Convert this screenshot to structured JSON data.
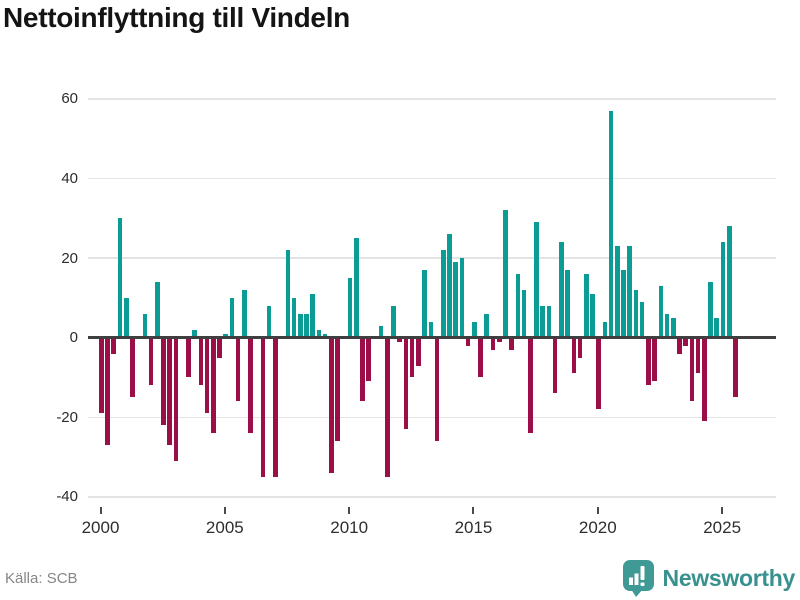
{
  "header": {
    "title": "Nettoinflyttning till Vindeln"
  },
  "footer": {
    "source": "Källa: SCB"
  },
  "brand": {
    "name": "Newsworthy",
    "icon": "newsworthy-pin-barchart-icon",
    "color": "#38918f"
  },
  "colors": {
    "positive_bar": "#0b9c95",
    "negative_bar": "#9c0e47",
    "gridline": "#e4e4e4",
    "zero_line": "#3f3f3f",
    "title_text": "#141414",
    "axis_text": "#2e2e2e",
    "source_text": "#868686"
  },
  "chart_data": {
    "type": "bar",
    "title": "Nettoinflyttning till Vindeln",
    "source": "Källa: SCB",
    "xlabel": "",
    "ylabel": "",
    "grid": "horizontal",
    "legend": "none",
    "y_ticks": [
      60,
      40,
      20,
      0,
      -20,
      -40
    ],
    "y_tick_labels": [
      "60",
      "40",
      "20",
      "0",
      "-20",
      "-40"
    ],
    "ylim": [
      -44,
      64
    ],
    "x_tick_labels": [
      "2000",
      "2005",
      "2010",
      "2015",
      "2020",
      "2025"
    ],
    "x_tick_indices": [
      0,
      20,
      40,
      60,
      80,
      100
    ],
    "quarters": [
      "2000-Q1",
      "2000-Q2",
      "2000-Q3",
      "2000-Q4",
      "2001-Q1",
      "2001-Q2",
      "2001-Q3",
      "2001-Q4",
      "2002-Q1",
      "2002-Q2",
      "2002-Q3",
      "2002-Q4",
      "2003-Q1",
      "2003-Q2",
      "2003-Q3",
      "2003-Q4",
      "2004-Q1",
      "2004-Q2",
      "2004-Q3",
      "2004-Q4",
      "2005-Q1",
      "2005-Q2",
      "2005-Q3",
      "2005-Q4",
      "2006-Q1",
      "2006-Q2",
      "2006-Q3",
      "2006-Q4",
      "2007-Q1",
      "2007-Q2",
      "2007-Q3",
      "2007-Q4",
      "2008-Q1",
      "2008-Q2",
      "2008-Q3",
      "2008-Q4",
      "2009-Q1",
      "2009-Q2",
      "2009-Q3",
      "2009-Q4",
      "2010-Q1",
      "2010-Q2",
      "2010-Q3",
      "2010-Q4",
      "2011-Q1",
      "2011-Q2",
      "2011-Q3",
      "2011-Q4",
      "2012-Q1",
      "2012-Q2",
      "2012-Q3",
      "2012-Q4",
      "2013-Q1",
      "2013-Q2",
      "2013-Q3",
      "2013-Q4",
      "2014-Q1",
      "2014-Q2",
      "2014-Q3",
      "2014-Q4",
      "2015-Q1",
      "2015-Q2",
      "2015-Q3",
      "2015-Q4",
      "2016-Q1",
      "2016-Q2",
      "2016-Q3",
      "2016-Q4",
      "2017-Q1",
      "2017-Q2",
      "2017-Q3",
      "2017-Q4",
      "2018-Q1",
      "2018-Q2",
      "2018-Q3",
      "2018-Q4",
      "2019-Q1",
      "2019-Q2",
      "2019-Q3",
      "2019-Q4",
      "2020-Q1",
      "2020-Q2",
      "2020-Q3",
      "2020-Q4",
      "2021-Q1",
      "2021-Q2",
      "2021-Q3",
      "2021-Q4",
      "2022-Q1",
      "2022-Q2",
      "2022-Q3",
      "2022-Q4",
      "2023-Q1",
      "2023-Q2",
      "2023-Q3",
      "2023-Q4",
      "2024-Q1",
      "2024-Q2",
      "2024-Q3",
      "2024-Q4",
      "2025-Q1",
      "2025-Q2",
      "2025-Q3"
    ],
    "values": [
      -19,
      -27,
      -4,
      30,
      10,
      -15,
      0,
      6,
      -12,
      14,
      -22,
      -27,
      -31,
      0,
      -10,
      2,
      -12,
      -19,
      -24,
      -5,
      1,
      10,
      -16,
      12,
      -24,
      0,
      -35,
      8,
      -35,
      0,
      22,
      10,
      6,
      6,
      11,
      2,
      1,
      -34,
      -26,
      0,
      15,
      25,
      -16,
      -11,
      0,
      3,
      -35,
      8,
      -1,
      -23,
      -10,
      -7,
      17,
      4,
      -26,
      22,
      26,
      19,
      20,
      -2,
      4,
      -10,
      6,
      -3,
      -1,
      32,
      -3,
      16,
      12,
      -24,
      29,
      8,
      8,
      -14,
      24,
      17,
      -9,
      -5,
      16,
      11,
      -18,
      4,
      57,
      23,
      17,
      23,
      12,
      9,
      -12,
      -11,
      13,
      6,
      5,
      -4,
      -2,
      -16,
      -9,
      -21,
      14,
      5,
      24,
      28,
      -15
    ]
  }
}
